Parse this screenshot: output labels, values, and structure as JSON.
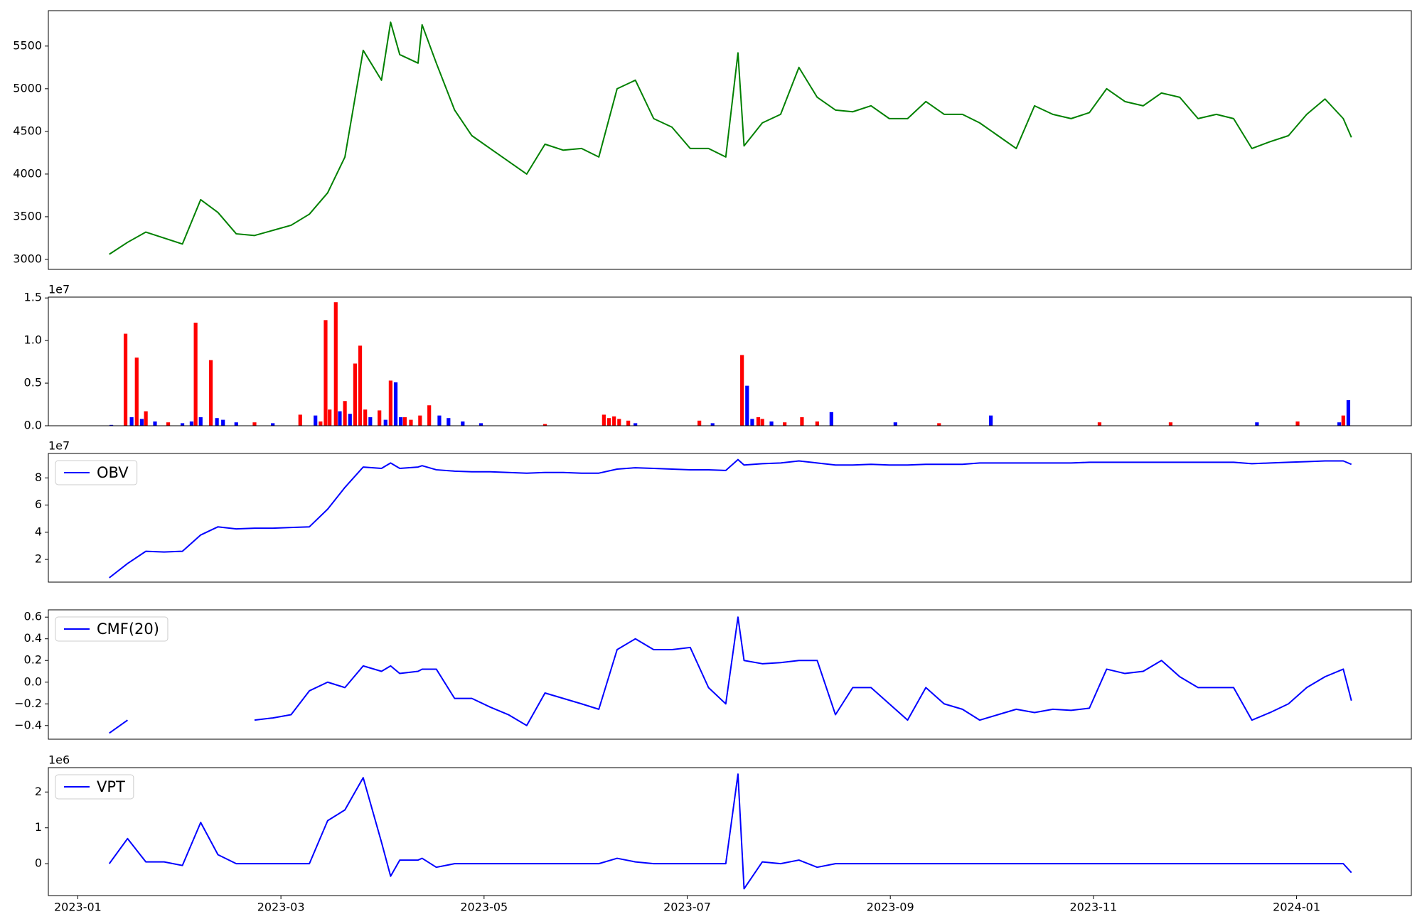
{
  "chart_data": [
    {
      "type": "line",
      "xlim": [
        -0.29,
        13.13
      ],
      "x": [
        0.31,
        0.49,
        0.67,
        0.85,
        1.03,
        1.21,
        1.38,
        1.56,
        1.74,
        1.92,
        2.1,
        2.28,
        2.46,
        2.63,
        2.81,
        2.99,
        3.08,
        3.17,
        3.35,
        3.39,
        3.53,
        3.71,
        3.88,
        4.06,
        4.24,
        4.42,
        4.6,
        4.78,
        4.96,
        5.13,
        5.31,
        5.49,
        5.67,
        5.85,
        6.03,
        6.21,
        6.38,
        6.5,
        6.56,
        6.74,
        6.92,
        7.1,
        7.28,
        7.46,
        7.63,
        7.81,
        7.99,
        8.17,
        8.35,
        8.53,
        8.71,
        8.88,
        9.06,
        9.24,
        9.42,
        9.6,
        9.78,
        9.96,
        10.13,
        10.31,
        10.49,
        10.67,
        10.85,
        11.03,
        11.21,
        11.38,
        11.56,
        11.74,
        11.92,
        12.1,
        12.28,
        12.46,
        12.54
      ],
      "series": [
        {
          "color": "#008000",
          "values": [
            3060,
            3200,
            3320,
            3250,
            3180,
            3700,
            3550,
            3300,
            3280,
            3340,
            3400,
            3530,
            3780,
            4200,
            5450,
            5100,
            5780,
            5400,
            5300,
            5750,
            5300,
            4750,
            4450,
            4300,
            4150,
            4000,
            4350,
            4280,
            4300,
            4200,
            5000,
            5100,
            4650,
            4550,
            4300,
            4300,
            4200,
            5420,
            4330,
            4600,
            4700,
            5250,
            4900,
            4750,
            4730,
            4800,
            4650,
            4650,
            4850,
            4700,
            4700,
            4600,
            4450,
            4300,
            4800,
            4700,
            4650,
            4720,
            5000,
            4850,
            4800,
            4950,
            4900,
            4650,
            4700,
            4650,
            4300,
            4380,
            4450,
            4700,
            4880,
            4650,
            4430
          ]
        }
      ],
      "ylim": [
        2883,
        5915
      ],
      "yticks": [
        3000,
        3500,
        4000,
        4500,
        5000,
        5500
      ]
    },
    {
      "type": "bar",
      "xlim": [
        -0.29,
        13.13
      ],
      "offset_label": "1e7",
      "x": [
        0.33,
        0.47,
        0.53,
        0.58,
        0.63,
        0.67,
        0.76,
        0.89,
        1.03,
        1.12,
        1.16,
        1.21,
        1.31,
        1.37,
        1.43,
        1.56,
        1.74,
        1.92,
        2.19,
        2.34,
        2.39,
        2.44,
        2.48,
        2.54,
        2.58,
        2.63,
        2.68,
        2.73,
        2.78,
        2.83,
        2.88,
        2.97,
        3.03,
        3.08,
        3.13,
        3.18,
        3.22,
        3.28,
        3.37,
        3.46,
        3.56,
        3.65,
        3.79,
        3.97,
        4.6,
        5.18,
        5.23,
        5.28,
        5.33,
        5.42,
        5.49,
        6.12,
        6.25,
        6.54,
        6.59,
        6.64,
        6.7,
        6.74,
        6.83,
        6.96,
        7.13,
        7.28,
        7.42,
        8.05,
        8.48,
        8.99,
        10.06,
        10.76,
        11.61,
        12.01,
        12.42,
        12.46,
        12.51
      ],
      "values": [
        0.01,
        1.08,
        0.1,
        0.8,
        0.08,
        0.17,
        0.05,
        0.04,
        0.03,
        0.05,
        1.21,
        0.1,
        0.77,
        0.09,
        0.07,
        0.04,
        0.04,
        0.03,
        0.13,
        0.12,
        0.05,
        1.24,
        0.19,
        1.45,
        0.17,
        0.29,
        0.14,
        0.73,
        0.94,
        0.19,
        0.1,
        0.18,
        0.07,
        0.53,
        0.51,
        0.1,
        0.1,
        0.07,
        0.12,
        0.24,
        0.12,
        0.09,
        0.05,
        0.03,
        0.02,
        0.13,
        0.09,
        0.11,
        0.08,
        0.06,
        0.03,
        0.06,
        0.03,
        0.83,
        0.47,
        0.08,
        0.1,
        0.08,
        0.05,
        0.04,
        0.1,
        0.05,
        0.16,
        0.04,
        0.03,
        0.12,
        0.04,
        0.04,
        0.04,
        0.05,
        0.04,
        0.12,
        0.3
      ],
      "colors": [
        "blue",
        "red",
        "blue",
        "red",
        "blue",
        "red",
        "blue",
        "red",
        "blue",
        "blue",
        "red",
        "blue",
        "red",
        "blue",
        "blue",
        "blue",
        "red",
        "blue",
        "red",
        "blue",
        "red",
        "red",
        "red",
        "red",
        "blue",
        "red",
        "blue",
        "red",
        "red",
        "red",
        "blue",
        "red",
        "blue",
        "red",
        "blue",
        "blue",
        "red",
        "red",
        "red",
        "red",
        "blue",
        "blue",
        "blue",
        "blue",
        "red",
        "red",
        "red",
        "red",
        "red",
        "red",
        "blue",
        "red",
        "blue",
        "red",
        "blue",
        "blue",
        "red",
        "red",
        "blue",
        "red",
        "red",
        "red",
        "blue",
        "blue",
        "red",
        "blue",
        "red",
        "red",
        "blue",
        "red",
        "blue",
        "red",
        "blue"
      ],
      "ylim": [
        0,
        1.51
      ],
      "yticks": [
        {
          "value": 0,
          "label": "0.0"
        },
        {
          "value": 0.5,
          "label": "0.5"
        },
        {
          "value": 1,
          "label": "1.0"
        },
        {
          "value": 1.5,
          "label": "1.5"
        }
      ]
    },
    {
      "type": "line",
      "xlim": [
        -0.29,
        13.13
      ],
      "offset_label": "1e7",
      "legend": "upper left",
      "x": [
        0.31,
        0.49,
        0.67,
        0.85,
        1.03,
        1.21,
        1.38,
        1.56,
        1.74,
        1.92,
        2.1,
        2.28,
        2.46,
        2.63,
        2.81,
        2.99,
        3.08,
        3.17,
        3.35,
        3.39,
        3.53,
        3.71,
        3.88,
        4.06,
        4.24,
        4.42,
        4.6,
        4.78,
        4.96,
        5.13,
        5.31,
        5.49,
        5.67,
        5.85,
        6.03,
        6.21,
        6.38,
        6.5,
        6.56,
        6.74,
        6.92,
        7.1,
        7.28,
        7.46,
        7.63,
        7.81,
        7.99,
        8.17,
        8.35,
        8.53,
        8.71,
        8.88,
        9.06,
        9.24,
        9.42,
        9.6,
        9.78,
        9.96,
        10.13,
        10.31,
        10.49,
        10.67,
        10.85,
        11.03,
        11.21,
        11.38,
        11.56,
        11.74,
        11.92,
        12.1,
        12.28,
        12.46,
        12.54
      ],
      "series": [
        {
          "name": "OBV",
          "color": "#0000ff",
          "values": [
            0.65,
            1.7,
            2.6,
            2.55,
            2.6,
            3.8,
            4.4,
            4.25,
            4.3,
            4.3,
            4.35,
            4.4,
            5.7,
            7.3,
            8.8,
            8.7,
            9.1,
            8.7,
            8.8,
            8.9,
            8.6,
            8.5,
            8.45,
            8.45,
            8.4,
            8.35,
            8.4,
            8.4,
            8.35,
            8.35,
            8.65,
            8.75,
            8.7,
            8.65,
            8.6,
            8.6,
            8.55,
            9.35,
            8.95,
            9.05,
            9.1,
            9.25,
            9.1,
            8.95,
            8.95,
            9.0,
            8.95,
            8.95,
            9.0,
            9.0,
            9.0,
            9.1,
            9.1,
            9.1,
            9.1,
            9.1,
            9.1,
            9.15,
            9.15,
            9.15,
            9.15,
            9.15,
            9.15,
            9.15,
            9.15,
            9.15,
            9.05,
            9.1,
            9.15,
            9.2,
            9.25,
            9.25,
            9.0
          ]
        }
      ],
      "ylim": [
        0.33,
        9.8
      ],
      "yticks": [
        2,
        4,
        6,
        8
      ]
    },
    {
      "type": "line",
      "xlim": [
        -0.29,
        13.13
      ],
      "legend": "upper left",
      "x": [
        0.31,
        0.49,
        0.67,
        0.85,
        1.03,
        1.21,
        1.38,
        1.56,
        1.74,
        1.92,
        2.1,
        2.28,
        2.46,
        2.63,
        2.81,
        2.99,
        3.08,
        3.17,
        3.35,
        3.39,
        3.53,
        3.71,
        3.88,
        4.06,
        4.24,
        4.42,
        4.6,
        4.78,
        4.96,
        5.13,
        5.31,
        5.49,
        5.67,
        5.85,
        6.03,
        6.21,
        6.38,
        6.5,
        6.56,
        6.74,
        6.92,
        7.1,
        7.28,
        7.46,
        7.63,
        7.81,
        7.99,
        8.17,
        8.35,
        8.53,
        8.71,
        8.88,
        9.06,
        9.24,
        9.42,
        9.6,
        9.78,
        9.96,
        10.13,
        10.31,
        10.49,
        10.67,
        10.85,
        11.03,
        11.21,
        11.38,
        11.56,
        11.74,
        11.92,
        12.1,
        12.28,
        12.46,
        12.54
      ],
      "series": [
        {
          "name": "CMF(20)",
          "color": "#0000ff",
          "values": [
            -0.47,
            -0.35,
            null,
            null,
            null,
            null,
            null,
            null,
            -0.35,
            -0.33,
            -0.3,
            -0.08,
            0.0,
            -0.05,
            0.15,
            0.1,
            0.15,
            0.08,
            0.1,
            0.12,
            0.12,
            -0.15,
            -0.15,
            -0.23,
            -0.3,
            -0.4,
            -0.1,
            -0.15,
            -0.2,
            -0.25,
            0.3,
            0.4,
            0.3,
            0.3,
            0.32,
            -0.05,
            -0.2,
            0.6,
            0.2,
            0.17,
            0.18,
            0.2,
            0.2,
            -0.3,
            -0.05,
            -0.05,
            -0.2,
            -0.35,
            -0.05,
            -0.2,
            -0.25,
            -0.35,
            -0.3,
            -0.25,
            -0.28,
            -0.25,
            -0.26,
            -0.24,
            0.12,
            0.08,
            0.1,
            0.2,
            0.05,
            -0.05,
            -0.05,
            -0.05,
            -0.35,
            -0.28,
            -0.2,
            -0.05,
            0.05,
            0.12,
            -0.17
          ]
        }
      ],
      "ylim": [
        -0.526,
        0.667
      ],
      "yticks": [
        {
          "value": -0.4,
          "label": "−0.4"
        },
        {
          "value": -0.2,
          "label": "−0.2"
        },
        {
          "value": 0,
          "label": "0.0"
        },
        {
          "value": 0.2,
          "label": "0.2"
        },
        {
          "value": 0.4,
          "label": "0.4"
        },
        {
          "value": 0.6,
          "label": "0.6"
        }
      ]
    },
    {
      "type": "line",
      "xlim": [
        -0.29,
        13.13
      ],
      "offset_label": "1e6",
      "legend": "upper left",
      "x": [
        0.31,
        0.49,
        0.67,
        0.85,
        1.03,
        1.21,
        1.38,
        1.56,
        1.74,
        1.92,
        2.1,
        2.28,
        2.46,
        2.63,
        2.81,
        2.99,
        3.08,
        3.17,
        3.35,
        3.39,
        3.53,
        3.71,
        3.88,
        4.06,
        4.24,
        4.42,
        4.6,
        4.78,
        4.96,
        5.13,
        5.31,
        5.49,
        5.67,
        5.85,
        6.03,
        6.21,
        6.38,
        6.5,
        6.56,
        6.74,
        6.92,
        7.1,
        7.28,
        7.46,
        7.63,
        7.81,
        7.99,
        8.17,
        8.35,
        8.53,
        8.71,
        8.88,
        9.06,
        9.24,
        9.42,
        9.6,
        9.78,
        9.96,
        10.13,
        10.31,
        10.49,
        10.67,
        10.85,
        11.03,
        11.21,
        11.38,
        11.56,
        11.74,
        11.92,
        12.1,
        12.28,
        12.46,
        12.54
      ],
      "series": [
        {
          "name": "VPT",
          "color": "#0000ff",
          "values": [
            0,
            0.7,
            0.05,
            0.05,
            -0.05,
            1.15,
            0.25,
            0,
            0,
            0,
            0,
            0,
            1.2,
            1.5,
            2.4,
            0.6,
            -0.35,
            0.1,
            0.1,
            0.15,
            -0.1,
            0,
            0,
            0,
            0,
            0,
            0,
            0,
            0,
            0,
            0.15,
            0.05,
            0,
            0,
            0,
            0,
            0,
            2.5,
            -0.7,
            0.05,
            0,
            0.1,
            -0.1,
            0,
            0,
            0,
            0,
            0,
            0,
            0,
            0,
            0,
            0,
            0,
            0,
            0,
            0,
            0,
            0,
            0,
            0,
            0,
            0,
            0,
            0,
            0,
            0,
            0,
            0,
            0,
            0,
            0,
            -0.25
          ]
        }
      ],
      "ylim": [
        -0.89,
        2.68
      ],
      "yticks": [
        0,
        1,
        2
      ],
      "xticks": [
        {
          "value": 0,
          "label": "2023-01"
        },
        {
          "value": 2,
          "label": "2023-03"
        },
        {
          "value": 4,
          "label": "2023-05"
        },
        {
          "value": 6,
          "label": "2023-07"
        },
        {
          "value": 8,
          "label": "2023-09"
        },
        {
          "value": 10,
          "label": "2023-11"
        },
        {
          "value": 12,
          "label": "2024-01"
        }
      ]
    }
  ]
}
